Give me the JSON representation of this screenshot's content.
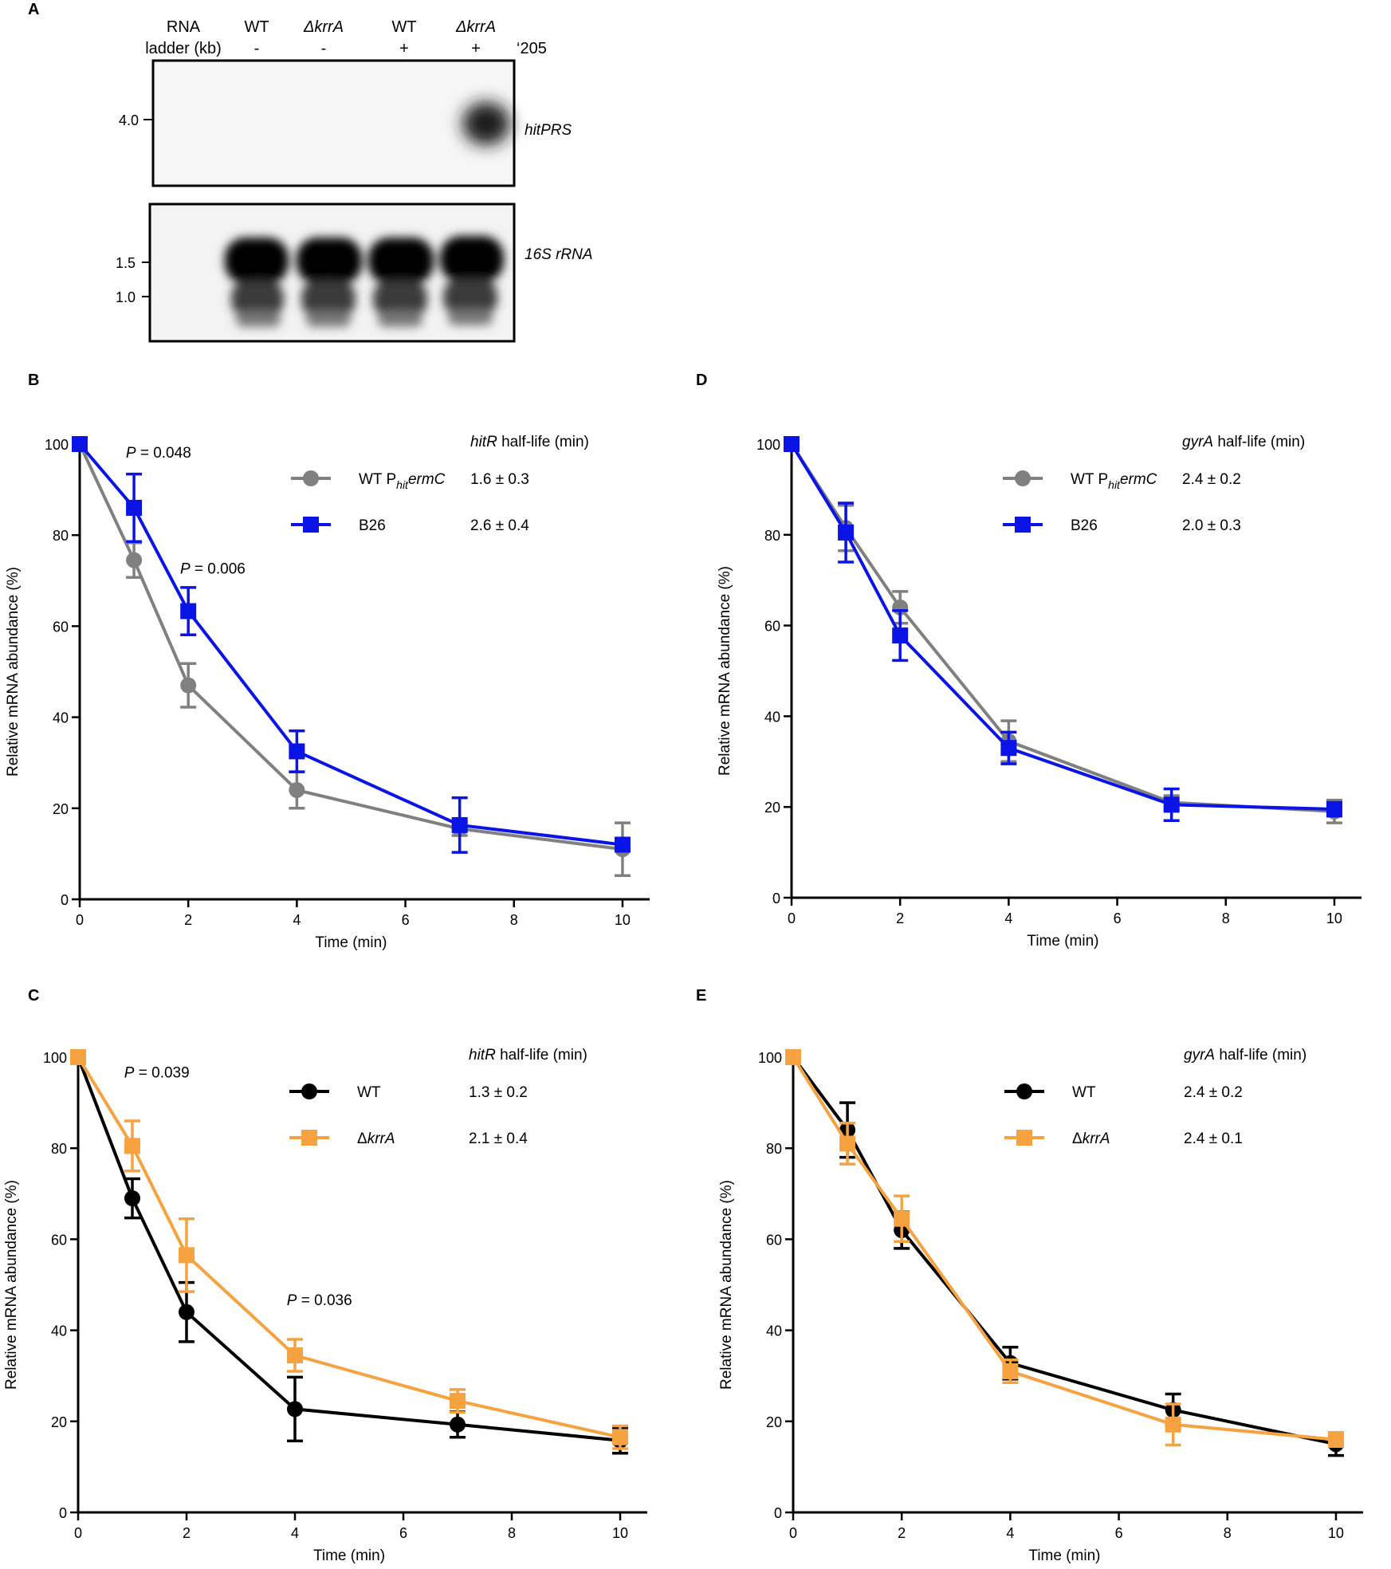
{
  "panelA": {
    "letter": "A",
    "lanes": [
      {
        "top": "RNA",
        "bottom": "ladder (kb)"
      },
      {
        "top": "WT",
        "bottom": "-"
      },
      {
        "top": "ΔkrrA",
        "bottom": "-"
      },
      {
        "top": "WT",
        "bottom": "+"
      },
      {
        "top": "ΔkrrA",
        "bottom": "+"
      }
    ],
    "treatment_label": "‘205",
    "blot1": {
      "label": "hitPRS",
      "markers": [
        "4.0"
      ]
    },
    "blot2": {
      "label": "16S rRNA",
      "markers": [
        "1.5",
        "1.0"
      ]
    }
  },
  "chart_data": [
    {
      "panel": "B",
      "type": "line",
      "xlabel": "Time (min)",
      "ylabel": "Relative mRNA abundance (%)",
      "xlim": [
        0,
        10
      ],
      "ylim": [
        0,
        100
      ],
      "xticks": [
        0,
        2,
        4,
        6,
        8,
        10
      ],
      "yticks": [
        0,
        20,
        40,
        60,
        80,
        100
      ],
      "legend_title_gene": "hitR",
      "legend_title_rest": " half-life (min)",
      "series": [
        {
          "name_main": "WT P",
          "name_sub": "hit",
          "name_tail": "ermC",
          "name_italic": false,
          "halflife": "1.6 ± 0.3",
          "color": "#808080",
          "marker": "circle",
          "x": [
            0,
            1,
            2,
            4,
            7,
            10
          ],
          "y": [
            100,
            74.5,
            47,
            24,
            15.5,
            11
          ],
          "err": [
            0,
            3.8,
            4.8,
            4,
            1.5,
            5.8
          ]
        },
        {
          "name_main": "B26",
          "name_sub": "",
          "name_tail": "",
          "name_italic": false,
          "halflife": "2.6 ± 0.4",
          "color": "#0a14e6",
          "marker": "square",
          "x": [
            0,
            1,
            2,
            4,
            7,
            10
          ],
          "y": [
            100,
            86,
            63.3,
            32.5,
            16.3,
            12
          ],
          "err": [
            0,
            7.4,
            5.2,
            4.5,
            6,
            1.2
          ]
        }
      ],
      "annotations": [
        {
          "p": "P",
          "text": " = 0.048",
          "x": 0.85,
          "y": 97
        },
        {
          "p": "P",
          "text": " = 0.006",
          "x": 1.85,
          "y": 71.5
        }
      ]
    },
    {
      "panel": "D",
      "type": "line",
      "xlabel": "Time (min)",
      "ylabel": "Relative mRNA abundance (%)",
      "xlim": [
        0,
        10
      ],
      "ylim": [
        0,
        100
      ],
      "xticks": [
        0,
        2,
        4,
        6,
        8,
        10
      ],
      "yticks": [
        0,
        20,
        40,
        60,
        80,
        100
      ],
      "legend_title_gene": "gyrA",
      "legend_title_rest": " half-life (min)",
      "series": [
        {
          "name_main": "WT P",
          "name_sub": "hit",
          "name_tail": "ermC",
          "name_italic": false,
          "halflife": "2.4 ± 0.2",
          "color": "#808080",
          "marker": "circle",
          "x": [
            0,
            1,
            2,
            4,
            7,
            10
          ],
          "y": [
            100,
            81.5,
            64,
            34.5,
            21,
            19
          ],
          "err": [
            0,
            5,
            3.5,
            4.5,
            1.5,
            2.5
          ]
        },
        {
          "name_main": "B26",
          "name_sub": "",
          "name_tail": "",
          "name_italic": false,
          "halflife": "2.0 ± 0.3",
          "color": "#0a14e6",
          "marker": "square",
          "x": [
            0,
            1,
            2,
            4,
            7,
            10
          ],
          "y": [
            100,
            80.5,
            57.8,
            33,
            20.5,
            19.5
          ],
          "err": [
            0,
            6.5,
            5.5,
            3.5,
            3.5,
            1.5
          ]
        }
      ],
      "annotations": []
    },
    {
      "panel": "C",
      "type": "line",
      "xlabel": "Time (min)",
      "ylabel": "Relative mRNA abundance (%)",
      "xlim": [
        0,
        10
      ],
      "ylim": [
        0,
        100
      ],
      "xticks": [
        0,
        2,
        4,
        6,
        8,
        10
      ],
      "yticks": [
        0,
        20,
        40,
        60,
        80,
        100
      ],
      "legend_title_gene": "hitR",
      "legend_title_rest": " half-life (min)",
      "series": [
        {
          "name_main": "WT",
          "name_sub": "",
          "name_tail": "",
          "name_italic": false,
          "halflife": "1.3 ± 0.2",
          "color": "#000000",
          "marker": "circle",
          "x": [
            0,
            1,
            2,
            4,
            7,
            10
          ],
          "y": [
            100,
            69,
            44,
            22.7,
            19.3,
            15.8
          ],
          "err": [
            0,
            4.3,
            6.5,
            7,
            2.8,
            2.8
          ]
        },
        {
          "name_main": "Δ",
          "name_sub": "",
          "name_tail": "krrA",
          "name_italic": true,
          "halflife": "2.1 ± 0.4",
          "color": "#f7a240",
          "marker": "square",
          "x": [
            0,
            1,
            2,
            4,
            7,
            10
          ],
          "y": [
            100,
            80.5,
            56.5,
            34.5,
            24.5,
            16.5
          ],
          "err": [
            0,
            5.5,
            8,
            3.5,
            2.5,
            2.5
          ]
        }
      ],
      "annotations": [
        {
          "p": "P",
          "text": " = 0.039",
          "x": 0.85,
          "y": 95.5
        },
        {
          "p": "P",
          "text": " = 0.036",
          "x": 3.85,
          "y": 45.5
        }
      ]
    },
    {
      "panel": "E",
      "type": "line",
      "xlabel": "Time (min)",
      "ylabel": "Relative mRNA abundance (%)",
      "xlim": [
        0,
        10
      ],
      "ylim": [
        0,
        100
      ],
      "xticks": [
        0,
        2,
        4,
        6,
        8,
        10
      ],
      "yticks": [
        0,
        20,
        40,
        60,
        80,
        100
      ],
      "legend_title_gene": "gyrA",
      "legend_title_rest": " half-life (min)",
      "series": [
        {
          "name_main": "WT",
          "name_sub": "",
          "name_tail": "",
          "name_italic": false,
          "halflife": "2.4 ± 0.2",
          "color": "#000000",
          "marker": "circle",
          "x": [
            0,
            1,
            2,
            4,
            7,
            10
          ],
          "y": [
            100,
            84,
            62,
            32.8,
            22.5,
            15
          ],
          "err": [
            0,
            6,
            4,
            3.5,
            3.5,
            2.5
          ]
        },
        {
          "name_main": "Δ",
          "name_sub": "",
          "name_tail": "krrA",
          "name_italic": true,
          "halflife": "2.4 ± 0.1",
          "color": "#f7a240",
          "marker": "square",
          "x": [
            0,
            1,
            2,
            4,
            7,
            10
          ],
          "y": [
            100,
            81,
            64.5,
            31,
            19.3,
            16
          ],
          "err": [
            0,
            4.5,
            5,
            2.5,
            4.5,
            1.5
          ]
        }
      ],
      "annotations": []
    }
  ]
}
